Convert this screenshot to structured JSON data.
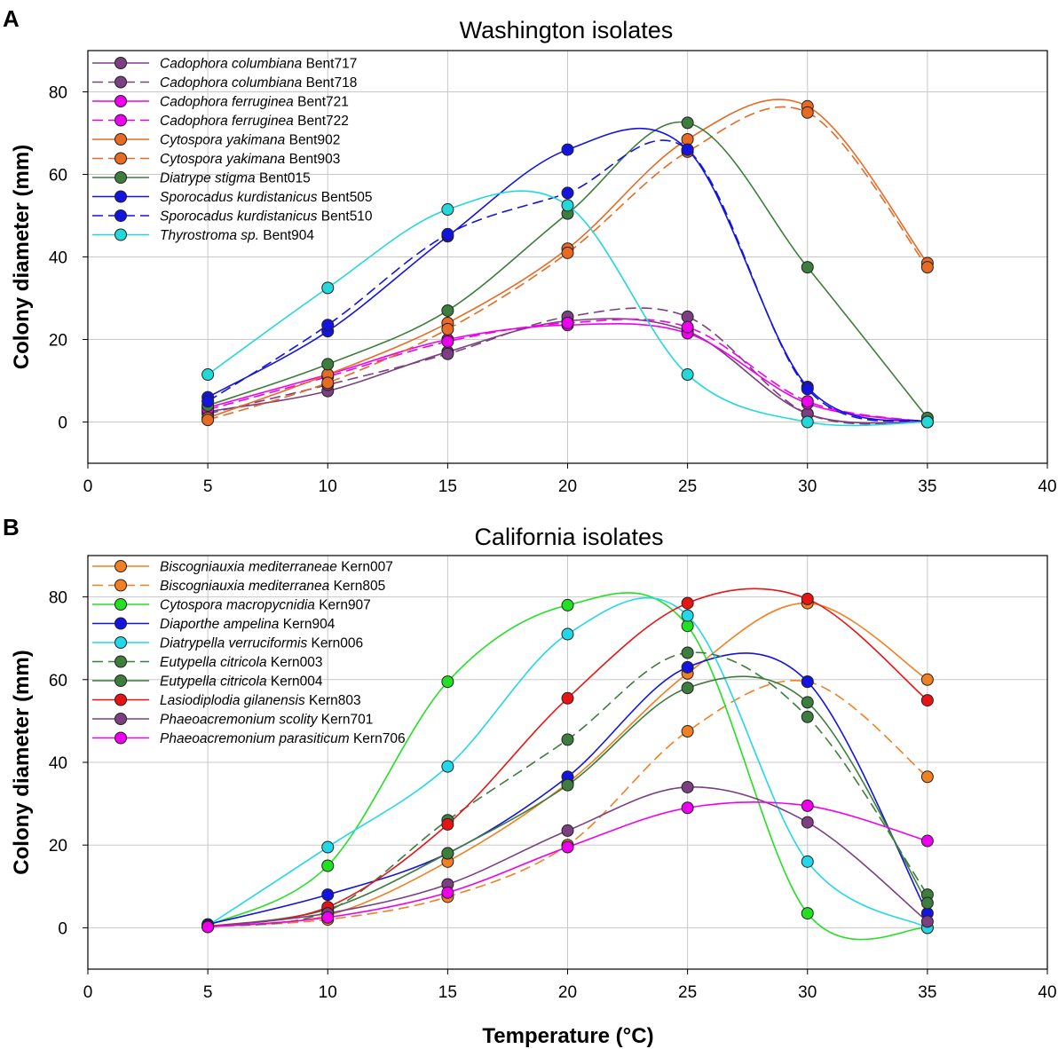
{
  "figure": {
    "xlabel": "Temperature (°C)"
  },
  "chart_data": [
    {
      "type": "line",
      "panel_label": "A",
      "title": "Washington isolates",
      "xlabel": "",
      "ylabel": "Colony diameter (mm)",
      "xlim": [
        0,
        40
      ],
      "ylim": [
        -10,
        90
      ],
      "xticks": [
        0,
        5,
        10,
        15,
        20,
        25,
        30,
        35,
        40
      ],
      "yticks": [
        0,
        20,
        40,
        60,
        80
      ],
      "grid": true,
      "legend_position": "top-left",
      "x": [
        5,
        10,
        15,
        20,
        25,
        30,
        35
      ],
      "series": [
        {
          "species": "Cadophora columbiana",
          "strain": " Bent717",
          "color": "#7B3F82",
          "dashed": false,
          "values": [
            2.5,
            7.5,
            17.0,
            24.5,
            22.0,
            2.0,
            0.0
          ]
        },
        {
          "species": "Cadophora columbiana",
          "strain": " Bent718",
          "color": "#7B3F82",
          "dashed": true,
          "values": [
            2.0,
            9.0,
            16.5,
            25.5,
            25.5,
            2.0,
            0.0
          ]
        },
        {
          "species": "Cadophora ferruginea",
          "strain": " Bent721",
          "color": "#EE00EE",
          "dashed": false,
          "values": [
            3.5,
            11.5,
            20.0,
            23.5,
            21.5,
            4.5,
            0.0
          ]
        },
        {
          "species": "Cadophora ferruginea",
          "strain": " Bent722",
          "color": "#EE00EE",
          "dashed": true,
          "values": [
            3.0,
            11.0,
            19.5,
            24.0,
            23.0,
            5.0,
            0.0
          ]
        },
        {
          "species": "Cytospora yakimana",
          "strain": " Bent902",
          "color": "#E86A23",
          "dashed": false,
          "values": [
            1.0,
            11.5,
            24.0,
            42.0,
            68.5,
            76.5,
            38.5
          ]
        },
        {
          "species": "Cytospora yakimana",
          "strain": " Bent903",
          "color": "#E86A23",
          "dashed": true,
          "values": [
            0.5,
            9.5,
            22.5,
            41.0,
            65.5,
            75.0,
            37.5
          ]
        },
        {
          "species": "Diatrype stigma",
          "strain": " Bent015",
          "color": "#3D7D3D",
          "dashed": false,
          "values": [
            4.0,
            14.0,
            27.0,
            50.5,
            72.5,
            37.5,
            1.0
          ]
        },
        {
          "species": "Sporocadus kurdistanicus",
          "strain": " Bent505",
          "color": "#1414E0",
          "dashed": false,
          "values": [
            6.0,
            22.0,
            45.0,
            66.0,
            66.0,
            8.5,
            0.0
          ]
        },
        {
          "species": "Sporocadus kurdistanicus",
          "strain": " Bent510",
          "color": "#1414E0",
          "dashed": true,
          "values": [
            5.0,
            23.5,
            45.5,
            55.5,
            66.0,
            8.0,
            0.0
          ]
        },
        {
          "species": "Thyrostroma sp.",
          "strain": " Bent904",
          "color": "#22D8D8",
          "dashed": false,
          "values": [
            11.5,
            32.5,
            51.5,
            52.5,
            11.5,
            0.0,
            0.0
          ]
        }
      ]
    },
    {
      "type": "line",
      "panel_label": "B",
      "title": "California isolates",
      "xlabel": "Temperature (°C)",
      "ylabel": "Colony diameter (mm)",
      "xlim": [
        0,
        40
      ],
      "ylim": [
        -10,
        90
      ],
      "xticks": [
        0,
        5,
        10,
        15,
        20,
        25,
        30,
        35,
        40
      ],
      "yticks": [
        0,
        20,
        40,
        60,
        80
      ],
      "grid": true,
      "legend_position": "top-left",
      "x": [
        5,
        10,
        15,
        20,
        25,
        30,
        35
      ],
      "series": [
        {
          "species": "Biscogniauxia mediterraneae",
          "strain": " Kern007",
          "color": "#F08022",
          "dashed": false,
          "values": [
            0.3,
            3.0,
            16.0,
            35.0,
            61.5,
            78.5,
            60.0
          ]
        },
        {
          "species": "Biscogniauxia mediterranea",
          "strain": " Kern805",
          "color": "#F08022",
          "dashed": true,
          "values": [
            0.3,
            2.0,
            7.5,
            20.0,
            47.5,
            59.5,
            36.5
          ]
        },
        {
          "species": "Cytospora macropycnidia",
          "strain": " Kern907",
          "color": "#22E022",
          "dashed": false,
          "values": [
            0.5,
            15.0,
            59.5,
            78.0,
            73.0,
            3.5,
            0.0
          ]
        },
        {
          "species": "Diaporthe ampelina",
          "strain": " Kern904",
          "color": "#1414E0",
          "dashed": false,
          "values": [
            0.8,
            8.0,
            18.0,
            36.5,
            63.0,
            59.5,
            3.5
          ]
        },
        {
          "species": "Diatrypella verruciformis",
          "strain": " Kern006",
          "color": "#22D8E8",
          "dashed": false,
          "values": [
            0.5,
            19.5,
            39.0,
            71.0,
            75.5,
            16.0,
            0.0
          ]
        },
        {
          "species": "Eutypella citricola",
          "strain": " Kern003",
          "color": "#3D7D3D",
          "dashed": true,
          "values": [
            0.3,
            4.0,
            26.0,
            45.5,
            66.5,
            51.0,
            8.0
          ]
        },
        {
          "species": "Eutypella citricola",
          "strain": " Kern004",
          "color": "#3D7D3D",
          "dashed": false,
          "values": [
            0.3,
            4.5,
            18.0,
            34.5,
            58.0,
            54.5,
            6.0
          ]
        },
        {
          "species": "Lasiodiplodia gilanensis",
          "strain": " Kern803",
          "color": "#E81414",
          "dashed": false,
          "values": [
            0.3,
            5.0,
            25.0,
            55.5,
            78.5,
            79.5,
            55.0
          ]
        },
        {
          "species": "Phaeoacremonium scolity",
          "strain": " Kern701",
          "color": "#7B3F82",
          "dashed": false,
          "values": [
            0.2,
            3.5,
            10.5,
            23.5,
            34.0,
            25.5,
            1.5
          ]
        },
        {
          "species": "Phaeoacremonium parasiticum",
          "strain": " Kern706",
          "color": "#EE00EE",
          "dashed": false,
          "values": [
            0.2,
            2.5,
            8.5,
            19.5,
            29.0,
            29.5,
            21.0
          ]
        }
      ]
    }
  ]
}
